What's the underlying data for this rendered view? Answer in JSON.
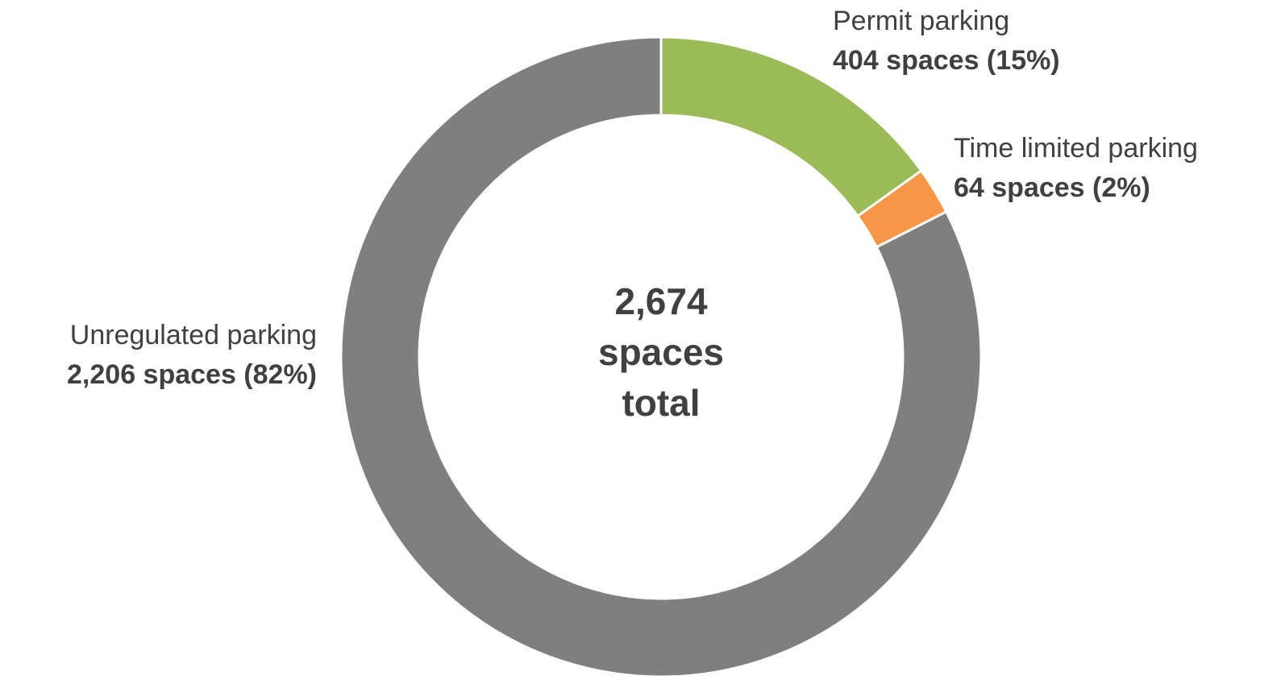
{
  "chart_data": {
    "type": "donut",
    "categories": [
      "Permit parking",
      "Time limited parking",
      "Unregulated parking"
    ],
    "values": [
      404,
      64,
      2206
    ],
    "value_labels": [
      "404 spaces (15%)",
      "64 spaces (2%)",
      "2,206 spaces (82%)"
    ],
    "colors": [
      "#9bbb59",
      "#f79646",
      "#7f7f7f"
    ],
    "center_text": [
      "2,674",
      "spaces",
      "total"
    ]
  }
}
